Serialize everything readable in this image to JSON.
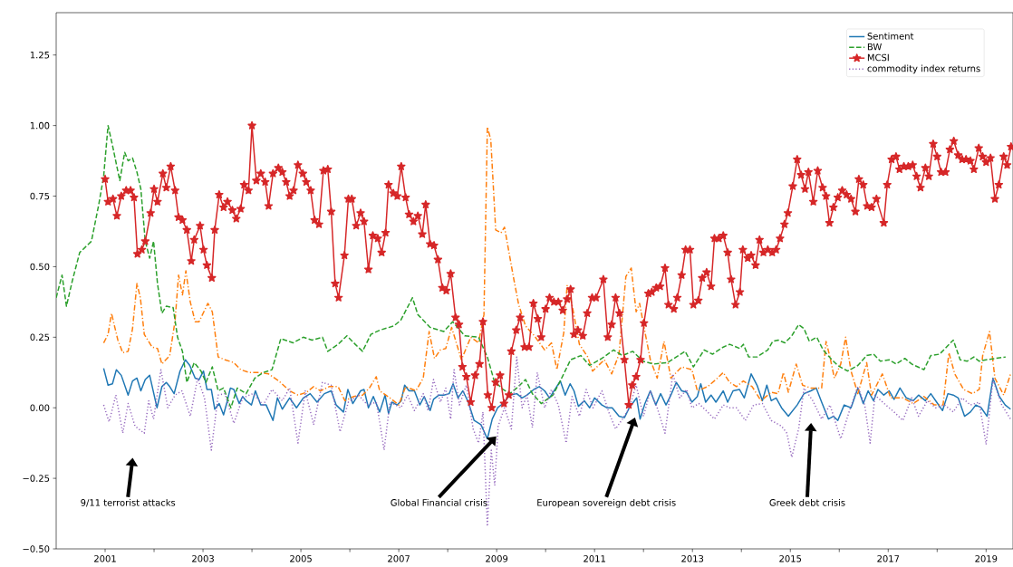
{
  "chart_data": {
    "type": "line",
    "xlim": [
      2000.0,
      2019.55
    ],
    "ylim": [
      -0.5,
      1.4
    ],
    "xticks": [
      2001,
      {
        "value": 2002,
        "label": null
      },
      2003,
      {
        "value": 2004,
        "label": null
      },
      2005,
      {
        "value": 2006,
        "label": null
      },
      2007,
      {
        "value": 2008,
        "label": null
      },
      2009,
      {
        "value": 2010,
        "label": null
      },
      2011,
      {
        "value": 2012,
        "label": null
      },
      2013,
      {
        "value": 2014,
        "label": null
      },
      2015,
      {
        "value": 2016,
        "label": null
      },
      2017,
      {
        "value": 2018,
        "label": null
      },
      2019
    ],
    "yticks": [
      {
        "value": -0.5,
        "label": "−0.50"
      },
      {
        "value": -0.25,
        "label": "−0.25"
      },
      {
        "value": 0,
        "label": "0.00"
      },
      {
        "value": 0.25,
        "label": "0.25"
      },
      {
        "value": 0.5,
        "label": "0.50"
      },
      {
        "value": 0.75,
        "label": "0.75"
      },
      {
        "value": 1.0,
        "label": "1.00"
      },
      {
        "value": 1.25,
        "label": "1.25"
      }
    ],
    "grid": false,
    "legend": "top right",
    "annotations": [
      "9/11 terrorist attacks",
      "Global Financial crisis",
      "European sovereign debt crisis",
      "Greek debt crisis"
    ],
    "series": [
      {
        "name": "Sentiment",
        "color": "#1f77b4",
        "line_style": "solid",
        "marker": "none",
        "x": [
          2000.97,
          2001.06,
          2001.15,
          2001.23,
          2001.33,
          2001.47,
          2001.56,
          2001.65,
          2001.73,
          2001.82,
          2001.91,
          2002.06,
          2002.16,
          2002.25,
          2002.32,
          2002.41,
          2002.53,
          2002.64,
          2002.73,
          2002.84,
          2002.92,
          2003.01,
          2003.08,
          2003.17,
          2003.24,
          2003.33,
          2003.42,
          2003.49,
          2003.56,
          2003.63,
          2003.74,
          2003.81,
          2003.88,
          2003.99,
          2004.07,
          2004.18,
          2004.29,
          2004.43,
          2004.52,
          2004.62,
          2004.77,
          2004.91,
          2005.05,
          2005.19,
          2005.33,
          2005.48,
          2005.62,
          2005.72,
          2005.87,
          2005.96,
          2006.06,
          2006.22,
          2006.29,
          2006.38,
          2006.48,
          2006.61,
          2006.72,
          2006.79,
          2006.86,
          2006.97,
          2007.05,
          2007.12,
          2007.21,
          2007.32,
          2007.43,
          2007.52,
          2007.64,
          2007.71,
          2007.82,
          2007.92,
          2008.03,
          2008.11,
          2008.21,
          2008.31,
          2008.42,
          2008.54,
          2008.68,
          2008.81,
          2008.91,
          2009.02,
          2009.13,
          2009.27,
          2009.41,
          2009.52,
          2009.62,
          2009.76,
          2009.87,
          2009.98,
          2010.08,
          2010.19,
          2010.3,
          2010.4,
          2010.5,
          2010.58,
          2010.67,
          2010.79,
          2010.9,
          2011.0,
          2011.15,
          2011.25,
          2011.36,
          2011.5,
          2011.61,
          2011.71,
          2011.86,
          2011.93,
          2012.03,
          2012.14,
          2012.25,
          2012.35,
          2012.46,
          2012.56,
          2012.67,
          2012.78,
          2012.88,
          2012.99,
          2013.1,
          2013.17,
          2013.27,
          2013.38,
          2013.48,
          2013.63,
          2013.72,
          2013.83,
          2013.96,
          2014.06,
          2014.2,
          2014.32,
          2014.43,
          2014.52,
          2014.61,
          2014.71,
          2014.82,
          2014.96,
          2015.14,
          2015.28,
          2015.42,
          2015.53,
          2015.64,
          2015.78,
          2015.88,
          2015.97,
          2016.1,
          2016.24,
          2016.38,
          2016.49,
          2016.59,
          2016.7,
          2016.79,
          2016.91,
          2017.02,
          2017.12,
          2017.24,
          2017.37,
          2017.51,
          2017.62,
          2017.76,
          2017.87,
          2017.99,
          2018.11,
          2018.22,
          2018.33,
          2018.43,
          2018.56,
          2018.68,
          2018.79,
          2018.9,
          2019.02,
          2019.14,
          2019.27,
          2019.39,
          2019.5
        ],
        "values": [
          0.14,
          0.08,
          0.085,
          0.135,
          0.115,
          0.045,
          0.095,
          0.105,
          0.06,
          0.1,
          0.115,
          0.0,
          0.075,
          0.09,
          0.075,
          0.05,
          0.13,
          0.17,
          0.15,
          0.105,
          0.1,
          0.13,
          0.065,
          0.065,
          -0.005,
          0.015,
          -0.025,
          0.02,
          0.07,
          0.065,
          0.015,
          0.04,
          0.025,
          0.01,
          0.06,
          0.01,
          0.01,
          -0.045,
          0.035,
          -0.005,
          0.035,
          0.0,
          0.035,
          0.05,
          0.02,
          0.05,
          0.06,
          0.01,
          -0.015,
          0.065,
          0.015,
          0.06,
          0.065,
          0.0,
          0.04,
          -0.015,
          0.045,
          -0.02,
          0.02,
          0.01,
          0.025,
          0.08,
          0.06,
          0.06,
          0.01,
          0.04,
          -0.01,
          0.03,
          0.045,
          0.045,
          0.05,
          0.085,
          0.035,
          0.06,
          0.02,
          -0.045,
          -0.06,
          -0.11,
          -0.04,
          0.0,
          0.015,
          0.045,
          0.05,
          0.035,
          0.045,
          0.065,
          0.075,
          0.06,
          0.035,
          0.065,
          0.095,
          0.045,
          0.085,
          0.06,
          0.005,
          0.025,
          0.0,
          0.035,
          0.01,
          0.0,
          0.0,
          -0.03,
          -0.035,
          0.0,
          0.035,
          -0.04,
          0.015,
          0.06,
          0.01,
          0.05,
          0.01,
          0.045,
          0.09,
          0.06,
          0.055,
          0.02,
          0.04,
          0.085,
          0.02,
          0.045,
          0.02,
          0.06,
          0.02,
          0.06,
          0.065,
          0.035,
          0.12,
          0.08,
          0.025,
          0.08,
          0.025,
          0.035,
          0.0,
          -0.03,
          0.01,
          0.05,
          0.06,
          0.07,
          0.02,
          -0.04,
          -0.03,
          -0.045,
          0.01,
          0.0,
          0.07,
          0.015,
          0.06,
          0.025,
          0.065,
          0.045,
          0.06,
          0.03,
          0.07,
          0.035,
          0.025,
          0.045,
          0.025,
          0.05,
          0.02,
          -0.01,
          0.05,
          0.045,
          0.035,
          -0.03,
          -0.015,
          0.01,
          0.0,
          -0.03,
          0.105,
          0.04,
          0.01,
          -0.005
        ]
      },
      {
        "color": "#ff7f0e",
        "line_style": "dashdot",
        "marker": "none",
        "x": [
          2000.97,
          2001.06,
          2001.13,
          2001.26,
          2001.36,
          2001.47,
          2001.56,
          2001.65,
          2001.72,
          2001.8,
          2001.96,
          2002.07,
          2002.16,
          2002.32,
          2002.43,
          2002.5,
          2002.58,
          2002.65,
          2002.74,
          2002.84,
          2002.92,
          2003.1,
          2003.19,
          2003.31,
          2003.45,
          2003.63,
          2003.77,
          2003.95,
          2004.16,
          2004.34,
          2004.55,
          2004.77,
          2004.94,
          2005.12,
          2005.26,
          2005.4,
          2005.58,
          2005.76,
          2005.9,
          2006.08,
          2006.26,
          2006.4,
          2006.54,
          2006.61,
          2006.82,
          2007.0,
          2007.14,
          2007.35,
          2007.5,
          2007.62,
          2007.73,
          2007.85,
          2007.96,
          2008.08,
          2008.28,
          2008.47,
          2008.63,
          2008.74,
          2008.81,
          2008.88,
          2008.98,
          2009.09,
          2009.16,
          2009.34,
          2009.45,
          2009.59,
          2009.77,
          2009.98,
          2010.12,
          2010.23,
          2010.37,
          2010.44,
          2010.54,
          2010.69,
          2010.86,
          2010.96,
          2011.2,
          2011.35,
          2011.5,
          2011.64,
          2011.75,
          2011.85,
          2011.92,
          2012.0,
          2012.14,
          2012.28,
          2012.42,
          2012.56,
          2012.78,
          2012.99,
          2013.1,
          2013.31,
          2013.48,
          2013.63,
          2013.76,
          2013.9,
          2014.04,
          2014.22,
          2014.4,
          2014.61,
          2014.75,
          2014.86,
          2014.96,
          2015.12,
          2015.25,
          2015.42,
          2015.64,
          2015.73,
          2015.81,
          2015.9,
          2016.03,
          2016.13,
          2016.24,
          2016.38,
          2016.56,
          2016.66,
          2016.88,
          2017.05,
          2017.3,
          2017.51,
          2017.73,
          2017.94,
          2018.12,
          2018.24,
          2018.36,
          2018.54,
          2018.72,
          2018.86,
          2018.93,
          2019.07,
          2019.18,
          2019.36,
          2019.5
        ],
        "values": [
          0.23,
          0.26,
          0.335,
          0.24,
          0.195,
          0.2,
          0.28,
          0.44,
          0.39,
          0.26,
          0.215,
          0.21,
          0.155,
          0.185,
          0.31,
          0.47,
          0.4,
          0.485,
          0.375,
          0.305,
          0.305,
          0.37,
          0.34,
          0.18,
          0.17,
          0.16,
          0.135,
          0.125,
          0.125,
          0.12,
          0.095,
          0.06,
          0.045,
          0.055,
          0.075,
          0.06,
          0.075,
          0.075,
          0.025,
          0.04,
          0.045,
          0.07,
          0.11,
          0.06,
          0.035,
          0.01,
          0.075,
          0.06,
          0.105,
          0.27,
          0.175,
          0.205,
          0.21,
          0.285,
          0.17,
          0.25,
          0.23,
          0.33,
          0.995,
          0.95,
          0.63,
          0.62,
          0.64,
          0.465,
          0.365,
          0.29,
          0.255,
          0.205,
          0.23,
          0.135,
          0.265,
          0.435,
          0.365,
          0.225,
          0.18,
          0.13,
          0.17,
          0.12,
          0.19,
          0.465,
          0.495,
          0.34,
          0.37,
          0.295,
          0.17,
          0.105,
          0.235,
          0.105,
          0.145,
          0.135,
          0.06,
          0.075,
          0.1,
          0.125,
          0.09,
          0.075,
          0.095,
          0.075,
          0.025,
          0.055,
          0.05,
          0.125,
          0.055,
          0.155,
          0.08,
          0.07,
          0.07,
          0.235,
          0.18,
          0.105,
          0.155,
          0.25,
          0.13,
          0.05,
          0.16,
          0.045,
          0.12,
          0.035,
          0.035,
          0.015,
          0.04,
          0.01,
          0.01,
          0.195,
          0.12,
          0.065,
          0.05,
          0.065,
          0.185,
          0.27,
          0.105,
          0.045,
          0.12
        ]
      },
      {
        "name": "BW",
        "color": "#2ca02c",
        "line_style": "dashed",
        "marker": "none",
        "x": [
          2000.0,
          2000.12,
          2000.21,
          2000.33,
          2000.48,
          2000.72,
          2000.87,
          2000.97,
          2001.06,
          2001.15,
          2001.3,
          2001.4,
          2001.47,
          2001.56,
          2001.65,
          2001.73,
          2001.82,
          2001.91,
          2001.99,
          2002.07,
          2002.16,
          2002.25,
          2002.39,
          2002.48,
          2002.58,
          2002.67,
          2002.82,
          2002.96,
          2003.06,
          2003.19,
          2003.31,
          2003.42,
          2003.57,
          2003.7,
          2003.88,
          2004.06,
          2004.23,
          2004.41,
          2004.59,
          2004.84,
          2005.05,
          2005.23,
          2005.44,
          2005.55,
          2005.76,
          2005.94,
          2006.11,
          2006.26,
          2006.43,
          2006.61,
          2006.9,
          2007.04,
          2007.28,
          2007.39,
          2007.64,
          2007.92,
          2008.1,
          2008.35,
          2008.63,
          2008.81,
          2008.95,
          2009.13,
          2009.27,
          2009.41,
          2009.59,
          2009.73,
          2009.91,
          2010.15,
          2010.3,
          2010.51,
          2010.72,
          2010.9,
          2011.15,
          2011.39,
          2011.57,
          2011.78,
          2011.99,
          2012.21,
          2012.49,
          2012.67,
          2012.85,
          2013.02,
          2013.24,
          2013.41,
          2013.63,
          2013.76,
          2013.97,
          2014.04,
          2014.15,
          2014.32,
          2014.54,
          2014.64,
          2014.75,
          2014.89,
          2015.03,
          2015.17,
          2015.28,
          2015.39,
          2015.54,
          2015.67,
          2015.85,
          2015.97,
          2016.17,
          2016.38,
          2016.56,
          2016.7,
          2016.84,
          2017.02,
          2017.16,
          2017.34,
          2017.48,
          2017.73,
          2017.87,
          2018.05,
          2018.19,
          2018.33,
          2018.47,
          2018.61,
          2018.75,
          2018.86,
          2019.0,
          2019.4
        ],
        "values": [
          0.39,
          0.47,
          0.36,
          0.45,
          0.55,
          0.59,
          0.72,
          0.82,
          1.0,
          0.93,
          0.805,
          0.905,
          0.875,
          0.885,
          0.835,
          0.775,
          0.59,
          0.53,
          0.59,
          0.44,
          0.335,
          0.36,
          0.355,
          0.25,
          0.2,
          0.09,
          0.16,
          0.13,
          0.09,
          0.145,
          0.06,
          0.07,
          0.0,
          0.07,
          0.05,
          0.105,
          0.125,
          0.135,
          0.245,
          0.23,
          0.25,
          0.24,
          0.25,
          0.2,
          0.225,
          0.255,
          0.225,
          0.2,
          0.26,
          0.275,
          0.29,
          0.31,
          0.39,
          0.33,
          0.285,
          0.27,
          0.305,
          0.255,
          0.25,
          0.18,
          0.095,
          0.065,
          0.05,
          0.07,
          0.1,
          0.05,
          0.015,
          0.045,
          0.095,
          0.17,
          0.185,
          0.15,
          0.175,
          0.205,
          0.185,
          0.2,
          0.165,
          0.155,
          0.16,
          0.18,
          0.2,
          0.145,
          0.205,
          0.19,
          0.215,
          0.225,
          0.21,
          0.225,
          0.18,
          0.18,
          0.205,
          0.235,
          0.24,
          0.23,
          0.255,
          0.295,
          0.28,
          0.235,
          0.25,
          0.205,
          0.17,
          0.15,
          0.13,
          0.15,
          0.185,
          0.19,
          0.165,
          0.17,
          0.155,
          0.175,
          0.155,
          0.135,
          0.185,
          0.19,
          0.215,
          0.24,
          0.17,
          0.165,
          0.18,
          0.165,
          0.17,
          0.18
        ]
      },
      {
        "name": "MCSI",
        "color": "#d62728",
        "line_style": "solid",
        "marker": "star",
        "x": [
          2001.0,
          2001.06,
          2001.16,
          2001.24,
          2001.33,
          2001.43,
          2001.52,
          2001.59,
          2001.66,
          2001.75,
          2001.82,
          2001.93,
          2002.0,
          2002.07,
          2002.18,
          2002.25,
          2002.34,
          2002.43,
          2002.5,
          2002.58,
          2002.67,
          2002.76,
          2002.82,
          2002.94,
          2003.01,
          2003.08,
          2003.18,
          2003.24,
          2003.33,
          2003.42,
          2003.5,
          2003.6,
          2003.68,
          2003.77,
          2003.84,
          2003.93,
          2004.0,
          2004.09,
          2004.18,
          2004.27,
          2004.34,
          2004.43,
          2004.54,
          2004.62,
          2004.7,
          2004.77,
          2004.85,
          2004.94,
          2005.04,
          2005.11,
          2005.2,
          2005.28,
          2005.37,
          2005.46,
          2005.55,
          2005.62,
          2005.7,
          2005.77,
          2005.89,
          2005.97,
          2006.04,
          2006.13,
          2006.22,
          2006.29,
          2006.38,
          2006.47,
          2006.57,
          2006.65,
          2006.73,
          2006.79,
          2006.89,
          2006.97,
          2007.05,
          2007.14,
          2007.21,
          2007.3,
          2007.39,
          2007.48,
          2007.55,
          2007.64,
          2007.72,
          2007.8,
          2007.89,
          2007.97,
          2008.06,
          2008.16,
          2008.23,
          2008.3,
          2008.38,
          2008.47,
          2008.56,
          2008.65,
          2008.72,
          2008.82,
          2008.9,
          2008.98,
          2009.07,
          2009.15,
          2009.25,
          2009.3,
          2009.4,
          2009.48,
          2009.57,
          2009.66,
          2009.75,
          2009.84,
          2009.91,
          2010.0,
          2010.08,
          2010.17,
          2010.26,
          2010.35,
          2010.44,
          2010.51,
          2010.58,
          2010.66,
          2010.76,
          2010.85,
          2010.95,
          2011.03,
          2011.18,
          2011.27,
          2011.35,
          2011.43,
          2011.51,
          2011.61,
          2011.7,
          2011.77,
          2011.85,
          2011.94,
          2012.01,
          2012.1,
          2012.17,
          2012.26,
          2012.34,
          2012.44,
          2012.51,
          2012.62,
          2012.69,
          2012.78,
          2012.86,
          2012.95,
          2013.02,
          2013.12,
          2013.2,
          2013.29,
          2013.38,
          2013.45,
          2013.54,
          2013.63,
          2013.72,
          2013.79,
          2013.88,
          2013.97,
          2014.03,
          2014.13,
          2014.2,
          2014.29,
          2014.37,
          2014.45,
          2014.54,
          2014.63,
          2014.71,
          2014.79,
          2014.88,
          2014.95,
          2015.05,
          2015.14,
          2015.22,
          2015.3,
          2015.37,
          2015.47,
          2015.56,
          2015.66,
          2015.73,
          2015.8,
          2015.88,
          2015.97,
          2016.06,
          2016.15,
          2016.24,
          2016.33,
          2016.4,
          2016.49,
          2016.57,
          2016.66,
          2016.76,
          2016.91,
          2016.98,
          2017.07,
          2017.16,
          2017.23,
          2017.32,
          2017.41,
          2017.5,
          2017.58,
          2017.66,
          2017.76,
          2017.83,
          2017.92,
          2018.0,
          2018.08,
          2018.17,
          2018.26,
          2018.34,
          2018.43,
          2018.51,
          2018.59,
          2018.68,
          2018.75,
          2018.85,
          2018.93,
          2019.0,
          2019.09,
          2019.18,
          2019.26,
          2019.36,
          2019.43,
          2019.51
        ],
        "values": [
          0.81,
          0.73,
          0.74,
          0.68,
          0.75,
          0.77,
          0.77,
          0.745,
          0.545,
          0.56,
          0.59,
          0.69,
          0.775,
          0.73,
          0.83,
          0.78,
          0.855,
          0.77,
          0.675,
          0.665,
          0.63,
          0.52,
          0.595,
          0.645,
          0.56,
          0.505,
          0.46,
          0.63,
          0.755,
          0.71,
          0.73,
          0.7,
          0.67,
          0.705,
          0.79,
          0.77,
          1.0,
          0.805,
          0.83,
          0.8,
          0.715,
          0.83,
          0.85,
          0.835,
          0.8,
          0.75,
          0.77,
          0.86,
          0.83,
          0.8,
          0.77,
          0.665,
          0.65,
          0.84,
          0.845,
          0.695,
          0.44,
          0.39,
          0.54,
          0.74,
          0.74,
          0.645,
          0.69,
          0.66,
          0.49,
          0.61,
          0.6,
          0.55,
          0.62,
          0.79,
          0.76,
          0.75,
          0.855,
          0.745,
          0.685,
          0.66,
          0.68,
          0.615,
          0.72,
          0.58,
          0.575,
          0.525,
          0.425,
          0.415,
          0.475,
          0.32,
          0.295,
          0.145,
          0.11,
          0.02,
          0.115,
          0.155,
          0.305,
          0.045,
          0.0,
          0.09,
          0.115,
          0.015,
          0.045,
          0.2,
          0.275,
          0.32,
          0.215,
          0.215,
          0.37,
          0.315,
          0.25,
          0.35,
          0.39,
          0.375,
          0.375,
          0.345,
          0.385,
          0.42,
          0.26,
          0.275,
          0.255,
          0.335,
          0.39,
          0.39,
          0.455,
          0.25,
          0.295,
          0.39,
          0.335,
          0.17,
          0.01,
          0.08,
          0.11,
          0.17,
          0.3,
          0.405,
          0.41,
          0.425,
          0.43,
          0.495,
          0.365,
          0.35,
          0.39,
          0.47,
          0.56,
          0.56,
          0.365,
          0.38,
          0.46,
          0.48,
          0.43,
          0.6,
          0.6,
          0.61,
          0.55,
          0.455,
          0.365,
          0.41,
          0.56,
          0.53,
          0.54,
          0.505,
          0.595,
          0.55,
          0.56,
          0.55,
          0.56,
          0.6,
          0.65,
          0.69,
          0.785,
          0.88,
          0.825,
          0.775,
          0.835,
          0.73,
          0.84,
          0.78,
          0.75,
          0.655,
          0.71,
          0.745,
          0.77,
          0.755,
          0.74,
          0.695,
          0.81,
          0.79,
          0.715,
          0.71,
          0.74,
          0.655,
          0.79,
          0.88,
          0.89,
          0.845,
          0.855,
          0.855,
          0.86,
          0.82,
          0.78,
          0.85,
          0.82,
          0.935,
          0.89,
          0.835,
          0.835,
          0.915,
          0.945,
          0.895,
          0.88,
          0.88,
          0.875,
          0.845,
          0.92,
          0.89,
          0.87,
          0.885,
          0.74,
          0.79,
          0.89,
          0.86,
          0.925
        ]
      },
      {
        "name": "commodity index returns",
        "color": "#9467bd",
        "line_style": "dotted",
        "marker": "none",
        "x": [
          2000.97,
          2001.08,
          2001.22,
          2001.36,
          2001.47,
          2001.61,
          2001.8,
          2001.89,
          2001.99,
          2002.14,
          2002.28,
          2002.43,
          2002.57,
          2002.74,
          2002.89,
          2003.03,
          2003.17,
          2003.31,
          2003.45,
          2003.63,
          2003.81,
          2004.02,
          2004.23,
          2004.41,
          2004.62,
          2004.77,
          2004.94,
          2005.09,
          2005.26,
          2005.44,
          2005.62,
          2005.8,
          2005.97,
          2006.18,
          2006.36,
          2006.54,
          2006.61,
          2006.7,
          2006.82,
          2007.04,
          2007.18,
          2007.32,
          2007.5,
          2007.6,
          2007.71,
          2007.85,
          2007.96,
          2008.06,
          2008.13,
          2008.24,
          2008.38,
          2008.52,
          2008.63,
          2008.72,
          2008.81,
          2008.89,
          2008.96,
          2009.03,
          2009.16,
          2009.3,
          2009.41,
          2009.52,
          2009.62,
          2009.73,
          2009.83,
          2009.98,
          2010.12,
          2010.26,
          2010.42,
          2010.54,
          2010.69,
          2010.83,
          2010.97,
          2011.15,
          2011.29,
          2011.43,
          2011.57,
          2011.71,
          2011.85,
          2012.0,
          2012.14,
          2012.28,
          2012.44,
          2012.6,
          2012.74,
          2012.88,
          2012.99,
          2013.13,
          2013.31,
          2013.45,
          2013.63,
          2013.76,
          2013.9,
          2014.08,
          2014.25,
          2014.43,
          2014.61,
          2014.82,
          2014.93,
          2015.03,
          2015.17,
          2015.28,
          2015.46,
          2015.64,
          2015.81,
          2016.03,
          2016.2,
          2016.38,
          2016.52,
          2016.63,
          2016.73,
          2016.95,
          2017.12,
          2017.3,
          2017.48,
          2017.62,
          2017.8,
          2017.97,
          2018.15,
          2018.33,
          2018.51,
          2018.68,
          2018.86,
          2019.0,
          2019.14,
          2019.32,
          2019.5
        ],
        "values": [
          0.01,
          -0.05,
          0.045,
          -0.09,
          0.015,
          -0.065,
          -0.09,
          0.025,
          -0.04,
          0.135,
          0.0,
          0.045,
          0.06,
          -0.03,
          0.105,
          0.035,
          -0.15,
          0.045,
          0.05,
          -0.055,
          0.035,
          0.05,
          0.01,
          0.065,
          0.025,
          0.07,
          -0.125,
          0.06,
          -0.06,
          0.09,
          0.08,
          -0.085,
          0.02,
          0.045,
          0.01,
          0.02,
          -0.05,
          -0.15,
          0.02,
          0.0,
          0.045,
          -0.01,
          0.05,
          -0.01,
          0.1,
          0.02,
          0.07,
          -0.04,
          0.135,
          0.01,
          0.08,
          -0.075,
          -0.125,
          -0.015,
          -0.42,
          -0.15,
          -0.275,
          -0.065,
          0.0,
          -0.075,
          0.18,
          0.0,
          0.045,
          -0.07,
          0.125,
          0.0,
          0.065,
          0.01,
          -0.125,
          0.04,
          -0.03,
          0.065,
          0.0,
          0.06,
          -0.015,
          -0.075,
          -0.04,
          0.0,
          0.08,
          -0.03,
          0.06,
          0.0,
          -0.09,
          0.12,
          0.035,
          0.065,
          0.0,
          0.015,
          -0.015,
          -0.04,
          0.01,
          0.0,
          0.0,
          -0.045,
          0.01,
          0.015,
          -0.045,
          -0.065,
          -0.09,
          -0.175,
          -0.075,
          0.07,
          0.025,
          -0.04,
          0.01,
          -0.11,
          -0.015,
          0.075,
          0.01,
          -0.125,
          0.045,
          0.01,
          -0.015,
          -0.045,
          0.035,
          -0.03,
          0.025,
          0.0,
          0.01,
          -0.015,
          0.035,
          0.01,
          0.02,
          -0.13,
          0.1,
          0.01,
          -0.04
        ]
      }
    ]
  }
}
